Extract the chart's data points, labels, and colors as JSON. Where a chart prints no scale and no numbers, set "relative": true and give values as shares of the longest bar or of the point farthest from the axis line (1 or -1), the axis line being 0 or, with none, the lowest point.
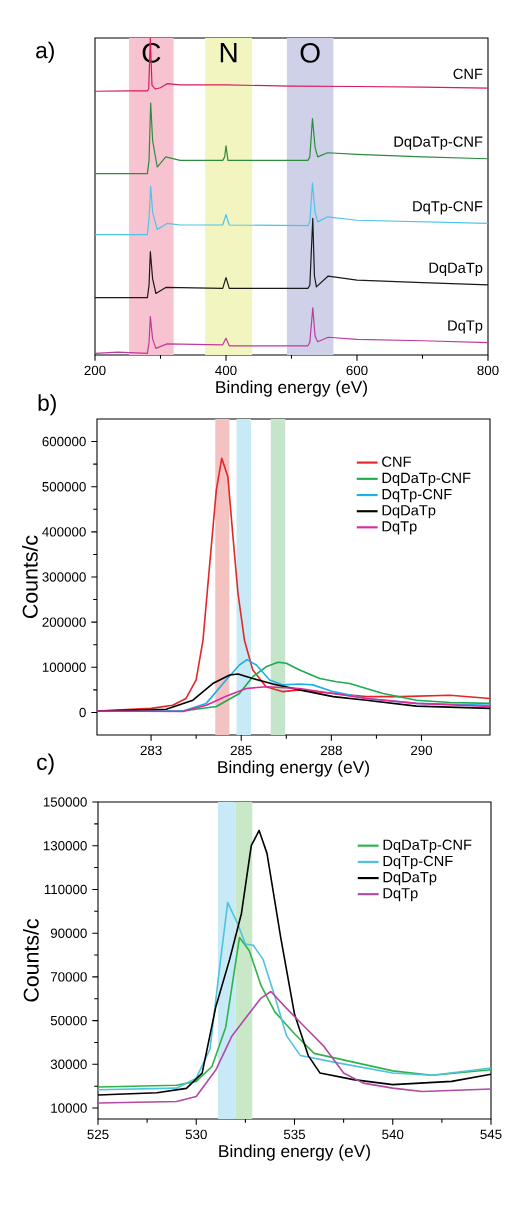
{
  "chart_data": [
    {
      "type": "line",
      "relative": true,
      "xlabel": "Binding energy (eV)",
      "xlim": [
        200,
        800
      ],
      "xticks": [
        200,
        400,
        600,
        800
      ],
      "tick_labels": "x",
      "marker": "none",
      "line_style": "solid",
      "annotations": [
        "a)"
      ],
      "bands": [
        {
          "axis": "x",
          "from": 252,
          "to": 320,
          "label": "C",
          "color": "#f7c3d0"
        },
        {
          "axis": "x",
          "from": 368,
          "to": 440,
          "label": "N",
          "color": "#f3f5c0"
        },
        {
          "axis": "x",
          "from": 493,
          "to": 564,
          "label": "O",
          "color": "#cfd1e8"
        }
      ],
      "series": [
        {
          "name": "CNF",
          "color": "#d81b60",
          "x": [
            200,
            250,
            280,
            282,
            284.5,
            287,
            292,
            300,
            310,
            330,
            400,
            500,
            600,
            700,
            800
          ],
          "values": [
            0.832,
            0.833,
            0.833,
            0.84,
            1.0,
            0.851,
            0.839,
            0.843,
            0.856,
            0.852,
            0.852,
            0.848,
            0.847,
            0.845,
            0.842
          ]
        },
        {
          "name": "DqDaTp-CNF",
          "color": "#2e8b3e",
          "x": [
            200,
            280,
            282.5,
            285,
            288,
            295,
            308,
            330,
            395,
            398,
            400,
            403,
            450,
            525,
            528,
            532,
            536,
            540,
            555,
            600,
            700,
            800
          ],
          "values": [
            0.572,
            0.572,
            0.614,
            0.795,
            0.676,
            0.593,
            0.625,
            0.614,
            0.614,
            0.625,
            0.66,
            0.614,
            0.614,
            0.614,
            0.625,
            0.746,
            0.656,
            0.625,
            0.638,
            0.633,
            0.625,
            0.619
          ]
        },
        {
          "name": "DqTp-CNF",
          "color": "#4ec3e8",
          "x": [
            200,
            280,
            282.5,
            285,
            288,
            295,
            310,
            330,
            395,
            400,
            405,
            525,
            528,
            532,
            536,
            540,
            555,
            600,
            700,
            800
          ],
          "values": [
            0.38,
            0.38,
            0.43,
            0.533,
            0.45,
            0.396,
            0.415,
            0.41,
            0.41,
            0.443,
            0.41,
            0.408,
            0.42,
            0.543,
            0.45,
            0.42,
            0.436,
            0.425,
            0.42,
            0.415
          ]
        },
        {
          "name": "DqDaTp",
          "color": "#1a1a1a",
          "x": [
            200,
            280,
            282.5,
            284.5,
            288,
            293,
            308,
            395,
            400,
            405,
            525,
            528,
            532.5,
            535,
            538,
            556,
            600,
            700,
            800
          ],
          "values": [
            0.181,
            0.181,
            0.22,
            0.326,
            0.24,
            0.194,
            0.213,
            0.21,
            0.244,
            0.21,
            0.21,
            0.22,
            0.431,
            0.25,
            0.215,
            0.249,
            0.236,
            0.228,
            0.221
          ]
        },
        {
          "name": "DqTp",
          "color": "#c0399e",
          "x": [
            200,
            235,
            280,
            282.5,
            284.5,
            288,
            293,
            310,
            395,
            400,
            405,
            525,
            528,
            532.5,
            536,
            540,
            556,
            600,
            700,
            800
          ],
          "values": [
            0.005,
            0.009,
            0.005,
            0.04,
            0.121,
            0.05,
            0.021,
            0.035,
            0.032,
            0.053,
            0.029,
            0.029,
            0.04,
            0.149,
            0.06,
            0.042,
            0.056,
            0.049,
            0.045,
            0.039
          ]
        }
      ]
    },
    {
      "type": "line",
      "xlabel": "Binding energy (eV)",
      "ylabel": "Counts/c",
      "xlim": [
        281,
        291.9
      ],
      "ylim": [
        -50000,
        650000
      ],
      "xticks": [
        {
          "value": 282.5,
          "label": "283"
        },
        {
          "value": 285,
          "label": "285"
        },
        {
          "value": 287.5,
          "label": "288"
        },
        {
          "value": 290,
          "label": "290"
        }
      ],
      "yticks": [
        0,
        100000,
        200000,
        300000,
        400000,
        500000,
        600000
      ],
      "legend": "top right",
      "marker": "none",
      "line_style": "solid",
      "annotations": [
        "b)"
      ],
      "bands": [
        {
          "axis": "x",
          "from": 284.28,
          "to": 284.67,
          "color": "#f5c2c2"
        },
        {
          "axis": "x",
          "from": 284.87,
          "to": 285.27,
          "color": "#c8eaf7"
        },
        {
          "axis": "x",
          "from": 285.82,
          "to": 286.22,
          "color": "#c5e5cb"
        }
      ],
      "series": [
        {
          "name": "CNF",
          "color": "#e32626",
          "x": [
            281,
            282.5,
            283.1,
            283.47,
            283.75,
            283.94,
            284.12,
            284.31,
            284.46,
            284.63,
            284.77,
            284.91,
            285.09,
            285.32,
            285.69,
            286.16,
            286.62,
            287.55,
            288.47,
            289.4,
            290.79,
            291.9
          ],
          "values": [
            3000,
            9000,
            16000,
            31000,
            72000,
            160000,
            323000,
            493000,
            563000,
            522000,
            390000,
            264000,
            160000,
            94000,
            57000,
            46000,
            50000,
            42000,
            35000,
            35000,
            38000,
            31000
          ]
        },
        {
          "name": "DqDaTp-CNF",
          "color": "#1eaa4f",
          "x": [
            281,
            283.38,
            284.31,
            284.95,
            285.32,
            285.69,
            286.02,
            286.25,
            286.62,
            287.18,
            287.64,
            288.01,
            288.47,
            288.94,
            289.86,
            290.79,
            291.9
          ],
          "values": [
            3000,
            3000,
            13000,
            42000,
            79000,
            101000,
            111000,
            109000,
            94000,
            75000,
            68000,
            64000,
            53000,
            42000,
            27000,
            22000,
            20000
          ]
        },
        {
          "name": "DqTp-CNF",
          "color": "#1ab0e8",
          "x": [
            281,
            283.38,
            284.03,
            284.58,
            284.95,
            285.16,
            285.42,
            285.79,
            286.16,
            286.62,
            286.99,
            287.55,
            288.47,
            289.86,
            291.9
          ],
          "values": [
            3000,
            3000,
            20000,
            72000,
            105000,
            117000,
            105000,
            72000,
            61000,
            63000,
            61000,
            46000,
            31000,
            20000,
            16000
          ]
        },
        {
          "name": "DqDaTp",
          "color": "#000000",
          "x": [
            281,
            282.92,
            283.66,
            284.21,
            284.68,
            284.91,
            285.32,
            285.88,
            286.62,
            287.55,
            288.47,
            289.86,
            291.9
          ],
          "values": [
            3000,
            7000,
            27000,
            64000,
            83000,
            85000,
            75000,
            63000,
            50000,
            35000,
            27000,
            14000,
            9000
          ]
        },
        {
          "name": "DqTp",
          "color": "#e0289a",
          "x": [
            281,
            283.38,
            284.03,
            284.58,
            285.14,
            285.69,
            286.62,
            287.55,
            288.47,
            289.86,
            291.9
          ],
          "values": [
            3000,
            2000,
            16000,
            36000,
            53000,
            57000,
            53000,
            42000,
            31000,
            20000,
            13000
          ]
        }
      ]
    },
    {
      "type": "line",
      "xlabel": "Binding energy (eV)",
      "ylabel": "Counts/c",
      "xlim": [
        525,
        545
      ],
      "ylim": [
        5000,
        150000
      ],
      "xticks": [
        525,
        530,
        535,
        540,
        545
      ],
      "yticks": [
        10000,
        30000,
        50000,
        70000,
        90000,
        110000,
        130000,
        150000
      ],
      "legend": "top right",
      "marker": "none",
      "line_style": "solid",
      "annotations": [
        "c)"
      ],
      "bands": [
        {
          "axis": "x",
          "from": 531.1,
          "to": 532.0,
          "color": "#c8eaf6"
        },
        {
          "axis": "x",
          "from": 532.0,
          "to": 532.85,
          "color": "#c8e8c8"
        }
      ],
      "series": [
        {
          "name": "DqDaTp-CNF",
          "color": "#2db34a",
          "x": [
            525,
            529,
            530,
            530.8,
            531.5,
            532.2,
            532.7,
            533.3,
            534,
            535,
            536,
            538,
            540,
            542,
            545
          ],
          "values": [
            19600,
            20400,
            22200,
            29000,
            47000,
            88000,
            82000,
            66000,
            54000,
            44000,
            35000,
            31000,
            27000,
            25000,
            27500
          ]
        },
        {
          "name": "DqTp-CNF",
          "color": "#4ec3de",
          "x": [
            525,
            529,
            530,
            530.7,
            531.2,
            531.6,
            532.1,
            532.5,
            532.9,
            533.4,
            534,
            534.6,
            535.3,
            537,
            540,
            542,
            545
          ],
          "values": [
            18400,
            19100,
            23700,
            37000,
            75000,
            104000,
            94500,
            85000,
            84500,
            78000,
            61000,
            43000,
            34000,
            31000,
            26000,
            25000,
            28300
          ]
        },
        {
          "name": "DqDaTp",
          "color": "#000000",
          "x": [
            525,
            528,
            529.5,
            530.3,
            531,
            531.7,
            532.3,
            532.8,
            533.2,
            533.6,
            534.3,
            535,
            535.7,
            536.3,
            538,
            540,
            543,
            545
          ],
          "values": [
            16000,
            17000,
            19000,
            26000,
            56500,
            78000,
            99000,
            130000,
            137000,
            126500,
            88000,
            53000,
            34000,
            26000,
            23000,
            20700,
            22200,
            25500
          ]
        },
        {
          "name": "DqTp",
          "color": "#b04aa6",
          "x": [
            525,
            529,
            530,
            531,
            531.8,
            532.7,
            533.3,
            533.8,
            534.5,
            535.5,
            536.5,
            537.5,
            538.5,
            540,
            541.5,
            545
          ],
          "values": [
            12300,
            13000,
            15300,
            27500,
            42700,
            53400,
            60300,
            63300,
            56500,
            47300,
            38200,
            26000,
            21400,
            19100,
            17600,
            18700
          ]
        }
      ]
    }
  ]
}
